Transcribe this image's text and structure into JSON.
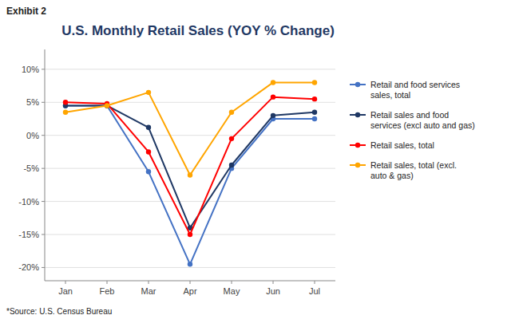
{
  "chart_data": {
    "type": "line",
    "title": "U.S. Monthly Retail Sales (YOY % Change)",
    "annotations": [
      "Exhibit 2",
      "*Source: U.S. Census Bureau"
    ],
    "categories": [
      "Jan",
      "Feb",
      "Mar",
      "Apr",
      "May",
      "Jun",
      "Jul"
    ],
    "series": [
      {
        "name": "Retail and food services\nsales, total",
        "color": "#4472C4",
        "values": [
          4.5,
          4.5,
          -5.5,
          -19.5,
          -5.0,
          2.5,
          2.5
        ]
      },
      {
        "name": "Retail sales and food\nservices (excl auto and gas)",
        "color": "#1F3864",
        "values": [
          4.5,
          4.5,
          1.2,
          -14.0,
          -4.5,
          3.0,
          3.5
        ]
      },
      {
        "name": "Retail sales, total",
        "color": "#FF0000",
        "values": [
          5.0,
          4.8,
          -2.5,
          -15.0,
          -0.5,
          5.8,
          5.5
        ]
      },
      {
        "name": "Retail sales, total (excl.\nauto & gas)",
        "color": "#FFA500",
        "values": [
          3.5,
          4.5,
          6.5,
          -6.0,
          3.5,
          8.0,
          8.0
        ]
      }
    ],
    "ylim": [
      -22,
      13
    ],
    "yticks": [
      {
        "value": -20,
        "label": "-20%"
      },
      {
        "value": -15,
        "label": "-15%"
      },
      {
        "value": -10,
        "label": "-10%"
      },
      {
        "value": -5,
        "label": "-5%"
      },
      {
        "value": 0,
        "label": "0%"
      },
      {
        "value": 5,
        "label": "5%"
      },
      {
        "value": 10,
        "label": "10%"
      }
    ],
    "grid": true,
    "legend": "right",
    "marker": "circle"
  }
}
